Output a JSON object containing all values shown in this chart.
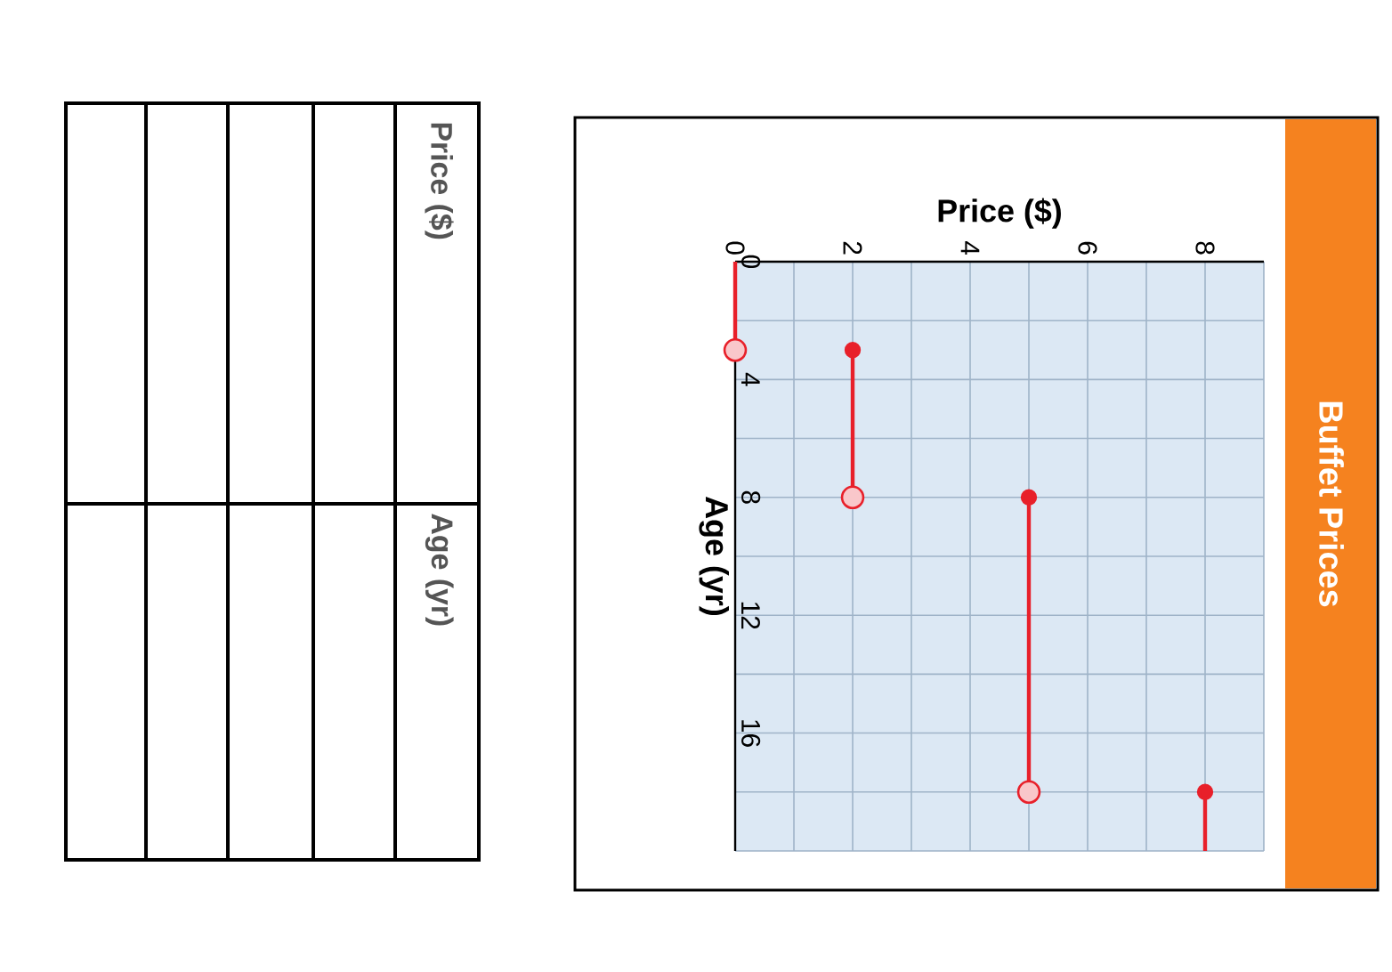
{
  "chart_data": {
    "type": "line",
    "title": "Buffet Prices",
    "xlabel": "Price ($)",
    "ylabel": "Age (yr)",
    "annotations": [
      "Price ($)",
      "Age (yr)"
    ],
    "series": [
      {
        "x": [
          0,
          0
        ],
        "values": [
          0,
          3
        ],
        "color": "#e8202a"
      },
      {
        "x": [
          2,
          2
        ],
        "values": [
          3,
          8
        ],
        "color": "#e8202a"
      },
      {
        "x": [
          5,
          5
        ],
        "values": [
          8,
          18
        ],
        "color": "#e8202a"
      },
      {
        "x": [
          8,
          8
        ],
        "values": [
          18,
          20
        ],
        "color": "#e8202a"
      }
    ],
    "xlim": [
      0,
      9
    ],
    "ylim": [
      20,
      0
    ],
    "yticks": [
      0,
      {
        "value": 2,
        "label": null
      },
      4,
      {
        "value": 6,
        "label": null
      },
      8,
      {
        "value": 10,
        "label": null
      },
      12,
      {
        "value": 14,
        "label": null
      },
      16,
      {
        "value": 18,
        "label": null
      },
      {
        "value": 20,
        "label": null
      }
    ],
    "xticks": [
      0,
      {
        "value": 1,
        "label": null
      },
      2,
      {
        "value": 3,
        "label": null
      },
      4,
      {
        "value": 5,
        "label": null
      },
      6,
      {
        "value": 7,
        "label": null
      },
      8,
      {
        "value": 9,
        "label": null
      }
    ],
    "grid": true,
    "marker": "circle"
  }
}
